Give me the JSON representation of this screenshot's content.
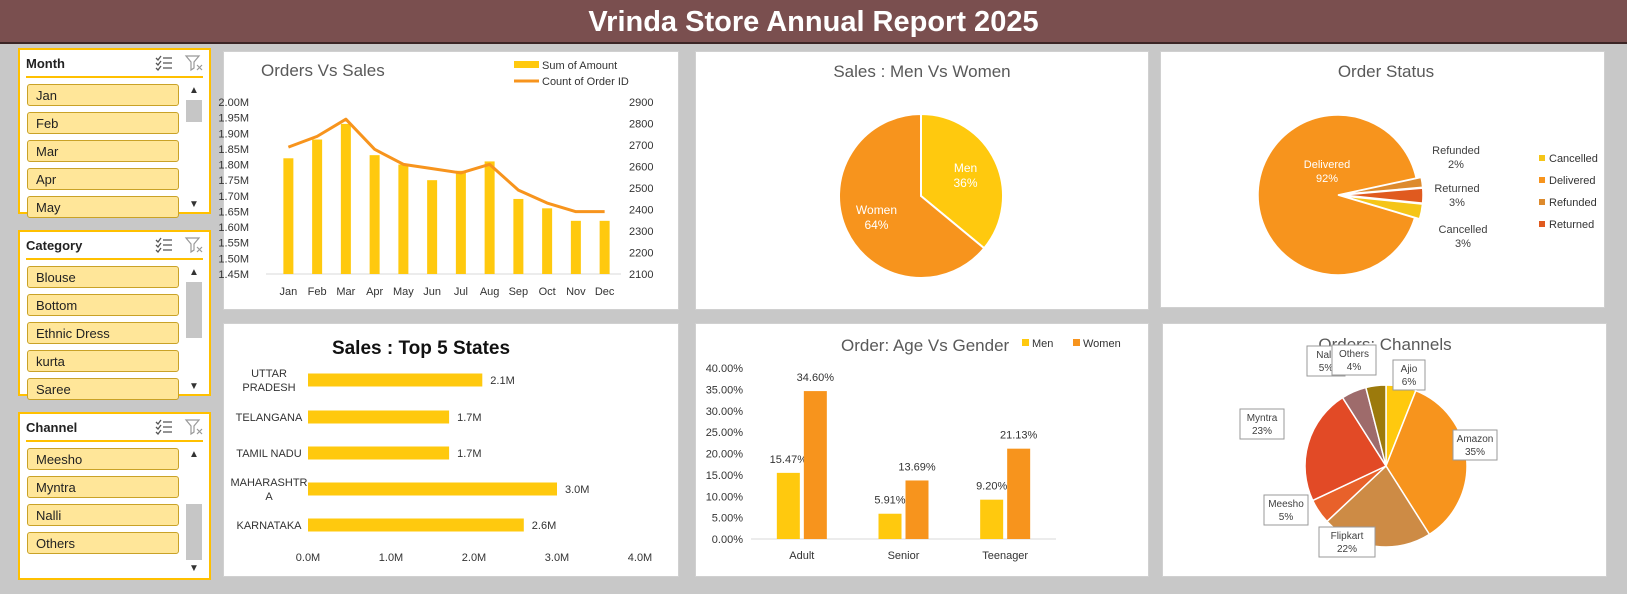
{
  "header": {
    "title": "Vrinda Store Annual Report 2025"
  },
  "slicers": {
    "month": {
      "title": "Month",
      "items": [
        "Jan",
        "Feb",
        "Mar",
        "Apr",
        "May"
      ]
    },
    "category": {
      "title": "Category",
      "items": [
        "Blouse",
        "Bottom",
        "Ethnic Dress",
        "kurta",
        "Saree"
      ]
    },
    "channel": {
      "title": "Channel",
      "items": [
        "Meesho",
        "Myntra",
        "Nalli",
        "Others"
      ]
    }
  },
  "colors": {
    "header": "#7a4f4f",
    "yellow": "#ffc90e",
    "orange": "#f7941d",
    "dark_orange": "#e05a1f",
    "slicer_item": "#ffe699"
  },
  "icons": {
    "multi_select": "multi-select-icon",
    "clear_filter": "clear-filter-icon",
    "scroll_up": "scroll-up-icon",
    "scroll_down": "scroll-down-icon"
  },
  "chart_data": [
    {
      "id": "orders_vs_sales",
      "type": "bar",
      "title": "Orders Vs Sales",
      "categories": [
        "Jan",
        "Feb",
        "Mar",
        "Apr",
        "May",
        "Jun",
        "Jul",
        "Aug",
        "Sep",
        "Oct",
        "Nov",
        "Dec"
      ],
      "series": [
        {
          "name": "Sum of Amount",
          "type": "bar",
          "axis": "left",
          "values": [
            1.82,
            1.88,
            1.93,
            1.83,
            1.8,
            1.75,
            1.78,
            1.81,
            1.69,
            1.66,
            1.62,
            1.62
          ]
        },
        {
          "name": "Count of Order ID",
          "type": "line",
          "axis": "right",
          "values": [
            2690,
            2740,
            2820,
            2680,
            2610,
            2590,
            2570,
            2610,
            2490,
            2430,
            2390,
            2390
          ]
        }
      ],
      "ylim": [
        1.45,
        2.0
      ],
      "y_ticks": [
        "1.45M",
        "1.50M",
        "1.55M",
        "1.60M",
        "1.65M",
        "1.70M",
        "1.75M",
        "1.80M",
        "1.85M",
        "1.90M",
        "1.95M",
        "2.00M"
      ],
      "y2lim": [
        2100,
        2900
      ],
      "y2_ticks": [
        "2100",
        "2200",
        "2300",
        "2400",
        "2500",
        "2600",
        "2700",
        "2800",
        "2900"
      ],
      "legend": "top-right"
    },
    {
      "id": "sales_men_women",
      "type": "pie",
      "title": "Sales : Men Vs Women",
      "slices": [
        {
          "label": "Men",
          "value": 36,
          "text": "36%"
        },
        {
          "label": "Women",
          "value": 64,
          "text": "64%"
        }
      ]
    },
    {
      "id": "order_status",
      "type": "pie",
      "title": "Order Status",
      "slices": [
        {
          "label": "Delivered",
          "value": 92,
          "text": "92%"
        },
        {
          "label": "Refunded",
          "value": 2,
          "text": "2%"
        },
        {
          "label": "Returned",
          "value": 3,
          "text": "3%"
        },
        {
          "label": "Cancelled",
          "value": 3,
          "text": "3%"
        }
      ],
      "legend_entries": [
        "Cancelled",
        "Delivered",
        "Refunded",
        "Returned"
      ],
      "legend": "right"
    },
    {
      "id": "top_states",
      "type": "bar",
      "orientation": "horizontal",
      "title": "Sales : Top 5 States",
      "categories": [
        "UTTAR PRADESH",
        "TELANGANA",
        "TAMIL NADU",
        "MAHARASHTRA",
        "KARNATAKA"
      ],
      "values": [
        2.1,
        1.7,
        1.7,
        3.0,
        2.6
      ],
      "value_labels": [
        "2.1M",
        "1.7M",
        "1.7M",
        "3.0M",
        "2.6M"
      ],
      "xlim": [
        0,
        4.0
      ],
      "x_ticks": [
        "0.0M",
        "1.0M",
        "2.0M",
        "3.0M",
        "4.0M"
      ]
    },
    {
      "id": "age_gender",
      "type": "bar",
      "title": "Order: Age Vs Gender",
      "categories": [
        "Adult",
        "Senior",
        "Teenager"
      ],
      "series": [
        {
          "name": "Men",
          "values": [
            15.47,
            5.91,
            9.2
          ],
          "labels": [
            "15.47%",
            "5.91%",
            "9.20%"
          ]
        },
        {
          "name": "Women",
          "values": [
            34.6,
            13.69,
            21.13
          ],
          "labels": [
            "34.60%",
            "13.69%",
            "21.13%"
          ]
        }
      ],
      "ylim": [
        0,
        40
      ],
      "y_ticks": [
        "0.00%",
        "5.00%",
        "10.00%",
        "15.00%",
        "20.00%",
        "25.00%",
        "30.00%",
        "35.00%",
        "40.00%"
      ],
      "legend": "top"
    },
    {
      "id": "channels",
      "type": "pie",
      "title": "Orders: Channels",
      "slices": [
        {
          "label": "Ajio",
          "value": 6,
          "text": "6%"
        },
        {
          "label": "Amazon",
          "value": 35,
          "text": "35%"
        },
        {
          "label": "Flipkart",
          "value": 22,
          "text": "22%"
        },
        {
          "label": "Meesho",
          "value": 5,
          "text": "5%"
        },
        {
          "label": "Myntra",
          "value": 23,
          "text": "23%"
        },
        {
          "label": "Nalli",
          "value": 5,
          "text": "5%"
        },
        {
          "label": "Others",
          "value": 4,
          "text": "4%"
        }
      ]
    }
  ]
}
